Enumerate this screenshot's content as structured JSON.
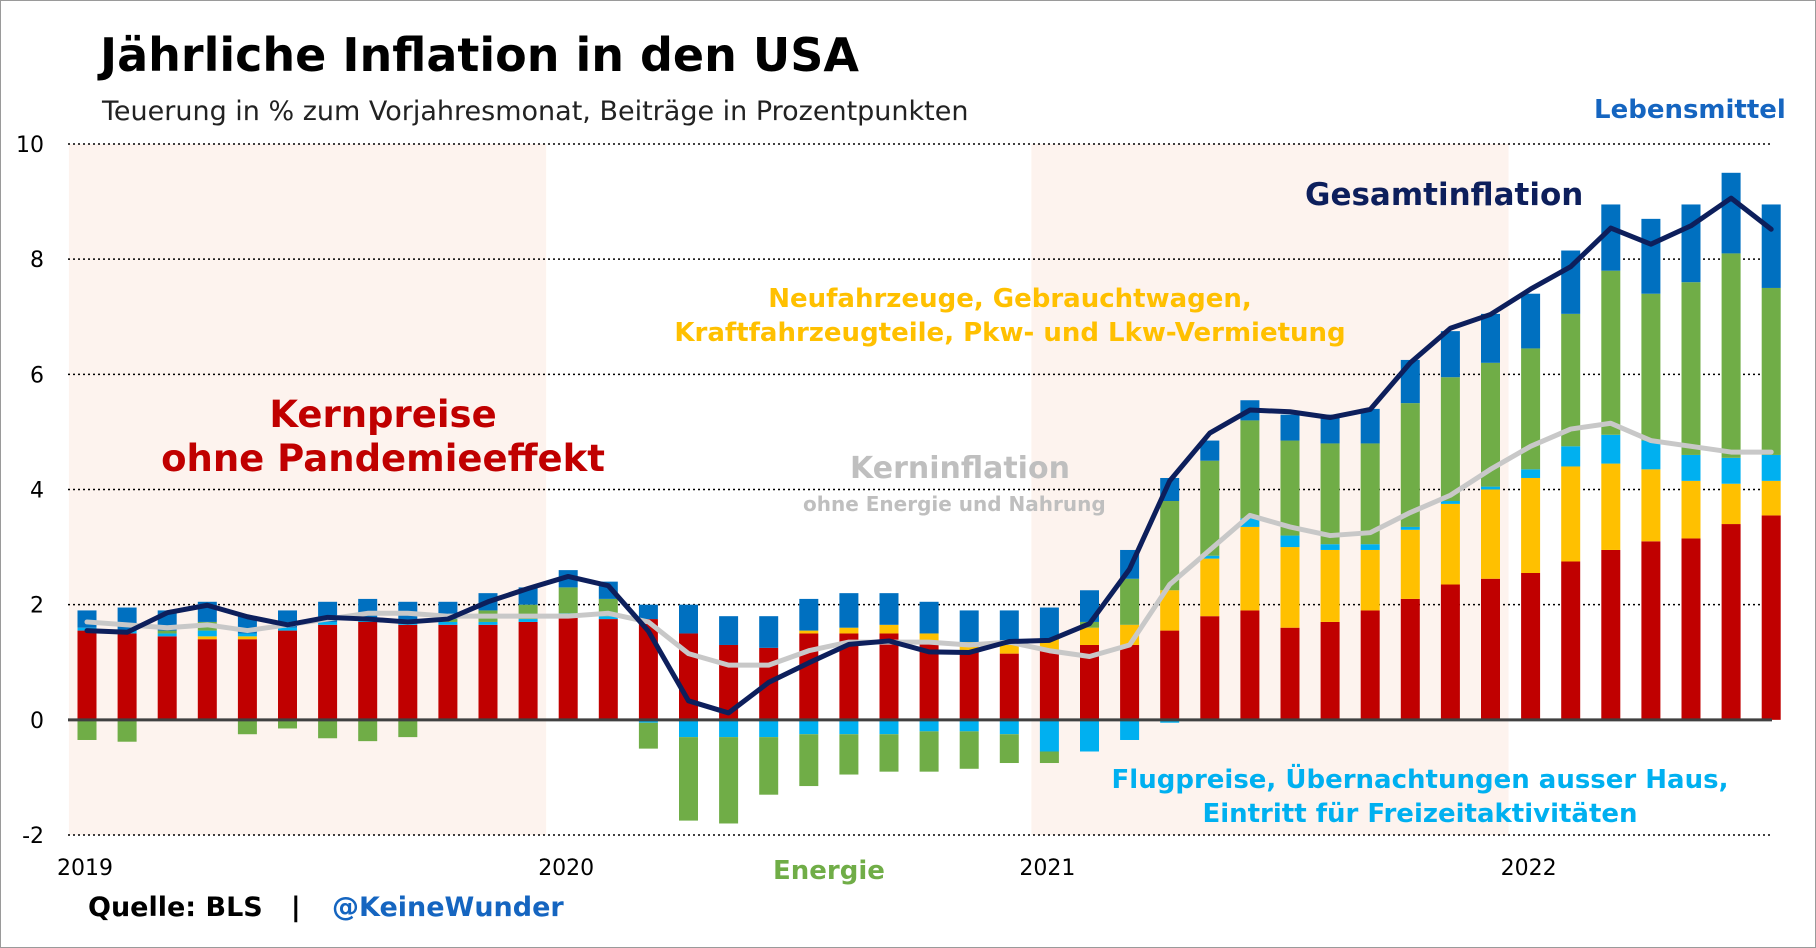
{
  "title": "Jährliche Inflation in den USA",
  "subtitle": "Teuerung in % zum Vorjahresmonat, Beiträge in Prozentpunkten",
  "source": {
    "label": "Quelle: BLS   |",
    "handle": "@KeineWunder"
  },
  "colors": {
    "kern": "#c00000",
    "fahrzeuge": "#ffc000",
    "freizeit": "#00b0f0",
    "energie": "#70ad47",
    "lebensmittel": "#0070c0",
    "gesamt": "#0d1f5c",
    "kerninflation": "#c8c8c8",
    "shade": "#fdf3ee"
  },
  "annotations": {
    "kernpreise": [
      "Kernpreise",
      "ohne Pandemieeffekt"
    ],
    "fahrzeuge": [
      "Neufahrzeuge, Gebrauchtwagen,",
      "Kraftfahrzeugteile, Pkw- und Lkw-Vermietung"
    ],
    "kerninflation": "Kerninflation",
    "kerninflation_sub": "ohne Energie und Nahrung",
    "gesamtinflation": "Gesamtinflation",
    "lebensmittel": "Lebensmittel",
    "freizeit": [
      "Flugpreise, Übernachtungen ausser Haus,",
      "Eintritt für Freizeitaktivitäten"
    ],
    "energie": "Energie"
  },
  "chart_data": {
    "type": "bar",
    "title": "Jährliche Inflation in den USA",
    "ylabel": "Teuerung in % zum Vorjahresmonat, Beiträge in Prozentpunkten",
    "ylim": [
      -2,
      10
    ],
    "yticks": [
      -2,
      0,
      2,
      4,
      6,
      8,
      10
    ],
    "xticks": [
      "2019",
      "2020",
      "2021",
      "2022"
    ],
    "categories": [
      "2019-01",
      "2019-02",
      "2019-03",
      "2019-04",
      "2019-05",
      "2019-06",
      "2019-07",
      "2019-08",
      "2019-09",
      "2019-10",
      "2019-11",
      "2019-12",
      "2020-01",
      "2020-02",
      "2020-03",
      "2020-04",
      "2020-05",
      "2020-06",
      "2020-07",
      "2020-08",
      "2020-09",
      "2020-10",
      "2020-11",
      "2020-12",
      "2021-01",
      "2021-02",
      "2021-03",
      "2021-04",
      "2021-05",
      "2021-06",
      "2021-07",
      "2021-08",
      "2021-09",
      "2021-10",
      "2021-11",
      "2021-12",
      "2022-01",
      "2022-02",
      "2022-03",
      "2022-04",
      "2022-05",
      "2022-06",
      "2022-07"
    ],
    "shaded_periods": [
      [
        "2019-01",
        "2019-12"
      ],
      [
        "2021-01",
        "2021-12"
      ]
    ],
    "series": [
      {
        "name": "Kernpreise ohne Pandemieeffekt",
        "kind": "bar",
        "color_key": "kern",
        "values": [
          1.55,
          1.5,
          1.45,
          1.4,
          1.4,
          1.55,
          1.65,
          1.7,
          1.65,
          1.65,
          1.65,
          1.7,
          1.8,
          1.75,
          1.75,
          1.5,
          1.3,
          1.25,
          1.5,
          1.5,
          1.5,
          1.35,
          1.2,
          1.15,
          1.2,
          1.3,
          1.3,
          1.55,
          1.8,
          1.9,
          1.6,
          1.7,
          1.9,
          2.1,
          2.35,
          2.45,
          2.55,
          2.75,
          2.95,
          3.1,
          3.15,
          3.4,
          3.55
        ]
      },
      {
        "name": "Neufahrzeuge, Gebrauchtwagen, Kraftfahrzeugteile, Pkw- und Lkw-Vermietung",
        "kind": "bar",
        "color_key": "fahrzeuge",
        "values": [
          0,
          0,
          0,
          0.05,
          0.05,
          0,
          0,
          0,
          0,
          0,
          0,
          0,
          0,
          0,
          0,
          0,
          0,
          0,
          0.05,
          0.1,
          0.15,
          0.15,
          0.15,
          0.15,
          0.2,
          0.3,
          0.35,
          0.7,
          1.0,
          1.45,
          1.4,
          1.25,
          1.05,
          1.2,
          1.4,
          1.55,
          1.65,
          1.65,
          1.5,
          1.25,
          1.0,
          0.7,
          0.6
        ]
      },
      {
        "name": "Flugpreise, Übernachtungen ausser Haus, Eintritt für Freizeitaktivitäten",
        "kind": "bar",
        "color_key": "freizeit",
        "values": [
          0.05,
          0.05,
          0.05,
          0.1,
          0.05,
          0.05,
          0.05,
          0.05,
          0.05,
          0.05,
          0.05,
          0.05,
          0.05,
          0.05,
          -0.05,
          -0.3,
          -0.3,
          -0.3,
          -0.25,
          -0.25,
          -0.25,
          -0.2,
          -0.2,
          -0.25,
          -0.55,
          -0.55,
          -0.35,
          -0.05,
          0.05,
          0.15,
          0.2,
          0.1,
          0.1,
          0.05,
          0.05,
          0.05,
          0.15,
          0.35,
          0.5,
          0.5,
          0.45,
          0.45,
          0.45
        ]
      },
      {
        "name": "Energie",
        "kind": "bar",
        "color_key": "energie",
        "values": [
          -0.35,
          -0.38,
          0.05,
          0.15,
          -0.25,
          -0.15,
          -0.32,
          -0.37,
          -0.3,
          0.05,
          0.2,
          0.25,
          0.45,
          0.3,
          -0.45,
          -1.45,
          -1.5,
          -1.0,
          -0.9,
          -0.7,
          -0.65,
          -0.7,
          -0.65,
          -0.5,
          -0.2,
          0.1,
          0.8,
          1.55,
          1.65,
          1.7,
          1.65,
          1.75,
          1.75,
          2.15,
          2.15,
          2.15,
          2.1,
          2.3,
          2.85,
          2.55,
          3.0,
          3.55,
          2.9
        ]
      },
      {
        "name": "Lebensmittel",
        "kind": "bar",
        "color_key": "lebensmittel",
        "values": [
          0.3,
          0.4,
          0.35,
          0.35,
          0.3,
          0.3,
          0.35,
          0.35,
          0.35,
          0.3,
          0.3,
          0.3,
          0.3,
          0.3,
          0.25,
          0.5,
          0.5,
          0.55,
          0.55,
          0.6,
          0.55,
          0.55,
          0.55,
          0.6,
          0.55,
          0.55,
          0.5,
          0.4,
          0.35,
          0.35,
          0.45,
          0.5,
          0.6,
          0.75,
          0.8,
          0.85,
          0.95,
          1.1,
          1.15,
          1.3,
          1.35,
          1.4,
          1.45
        ]
      },
      {
        "name": "Gesamtinflation",
        "kind": "line",
        "color_key": "gesamt",
        "values": [
          1.55,
          1.52,
          1.86,
          1.99,
          1.79,
          1.65,
          1.78,
          1.75,
          1.7,
          1.75,
          2.05,
          2.28,
          2.49,
          2.33,
          1.54,
          0.33,
          0.12,
          0.65,
          0.99,
          1.31,
          1.37,
          1.18,
          1.17,
          1.36,
          1.38,
          1.67,
          2.62,
          4.15,
          4.98,
          5.38,
          5.35,
          5.25,
          5.39,
          6.2,
          6.8,
          7.04,
          7.48,
          7.87,
          8.54,
          8.26,
          8.58,
          9.06,
          8.52
        ]
      },
      {
        "name": "Kerninflation ohne Energie und Nahrung",
        "kind": "line",
        "color_key": "kerninflation",
        "values": [
          1.7,
          1.65,
          1.6,
          1.65,
          1.55,
          1.65,
          1.75,
          1.85,
          1.85,
          1.8,
          1.8,
          1.8,
          1.8,
          1.85,
          1.7,
          1.15,
          0.95,
          0.95,
          1.2,
          1.35,
          1.35,
          1.35,
          1.3,
          1.35,
          1.2,
          1.1,
          1.3,
          2.35,
          2.95,
          3.55,
          3.35,
          3.2,
          3.25,
          3.6,
          3.9,
          4.35,
          4.75,
          5.05,
          5.15,
          4.85,
          4.75,
          4.65,
          4.65
        ]
      }
    ]
  }
}
